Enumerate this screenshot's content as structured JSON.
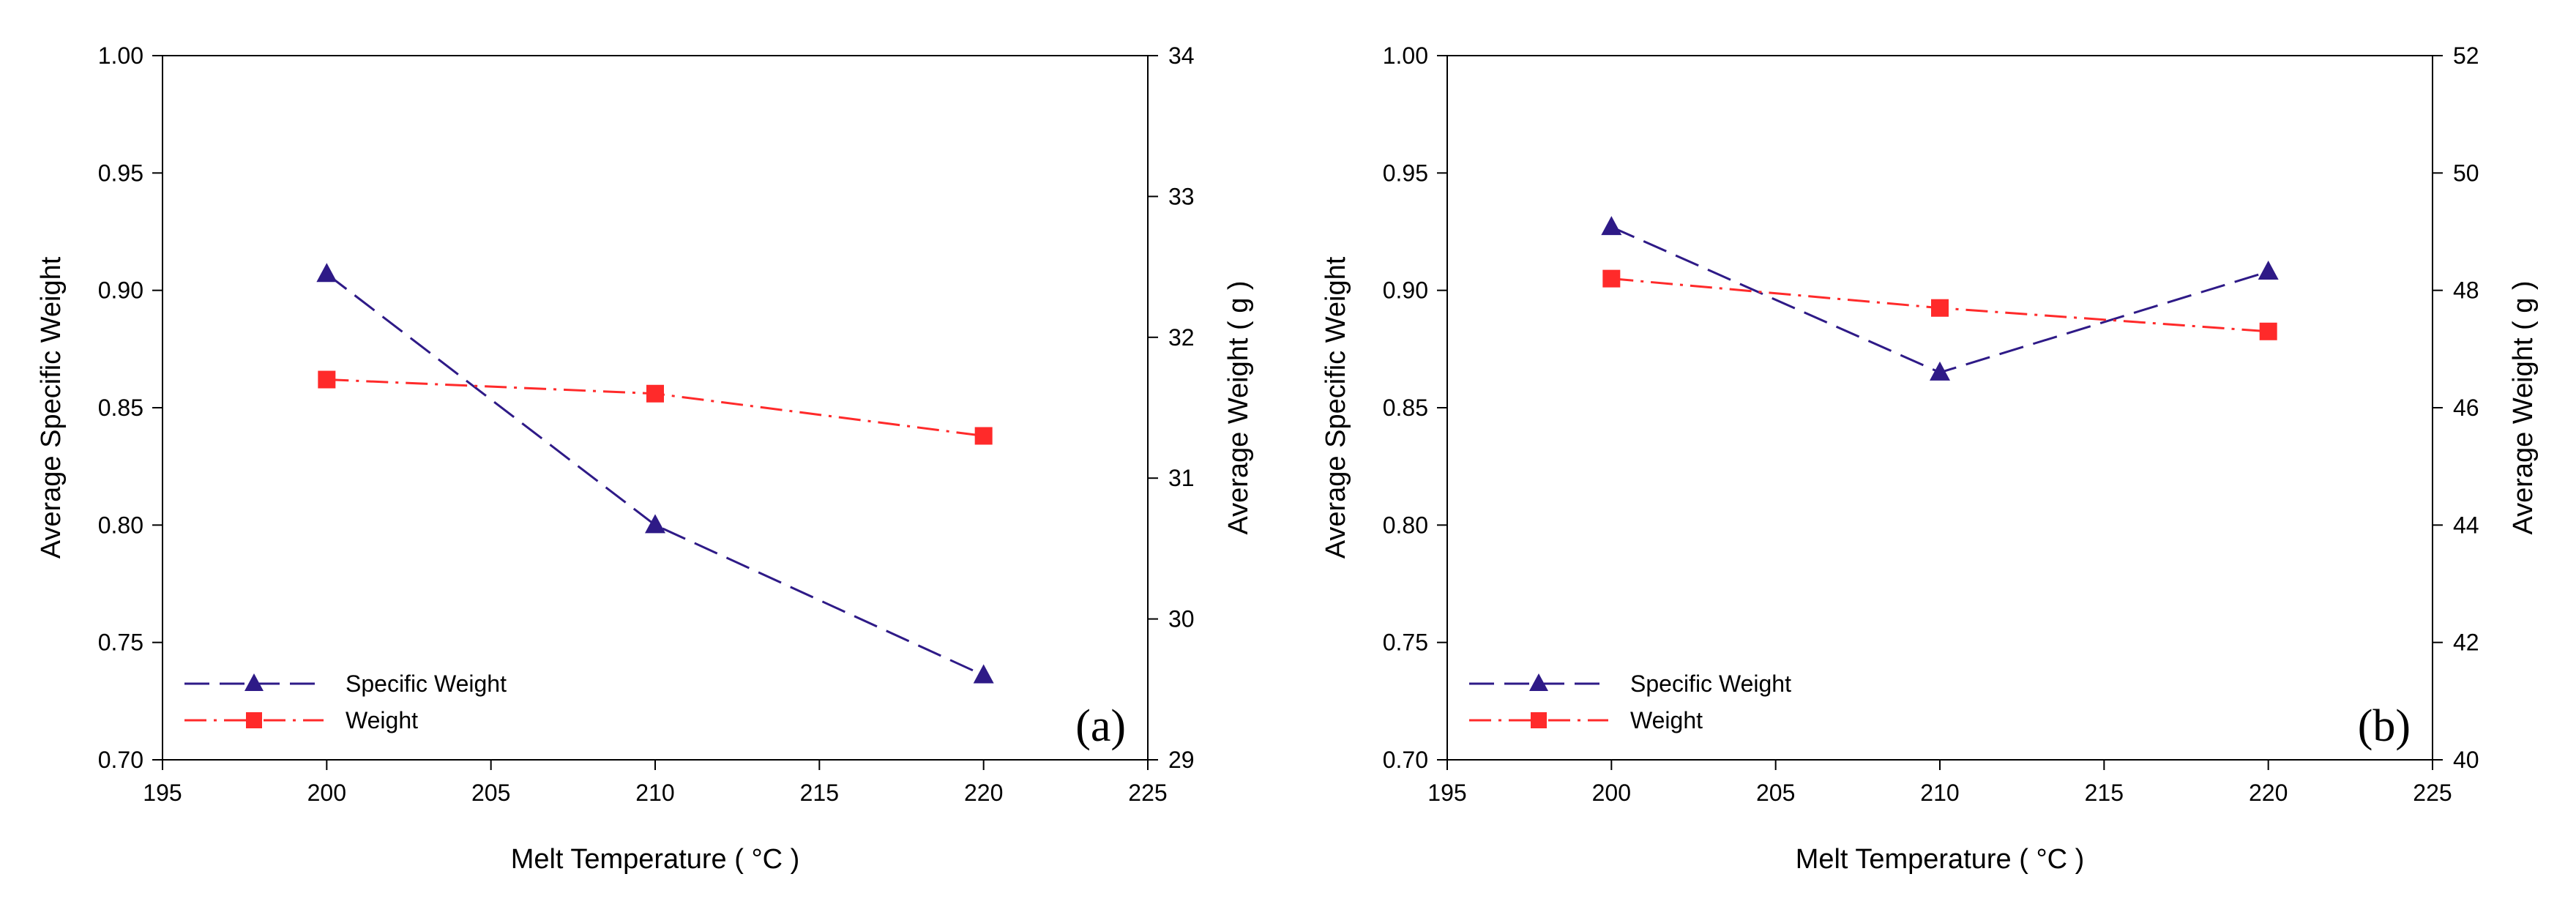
{
  "chart_data": [
    {
      "type": "line",
      "panel_label": "(a)",
      "xlabel": "Melt Temperature ( °C )",
      "ylabel": "Average Specific Weight",
      "y2label": "Average Weight ( g )",
      "xlim": [
        195,
        225
      ],
      "xticks": [
        195,
        200,
        205,
        210,
        215,
        220,
        225
      ],
      "ylim": [
        0.7,
        1.0
      ],
      "yticks": [
        0.7,
        0.75,
        0.8,
        0.85,
        0.9,
        0.95,
        1.0
      ],
      "y2lim": [
        29,
        34
      ],
      "y2ticks": [
        29,
        30,
        31,
        32,
        33,
        34
      ],
      "legend_position": "bottom-left",
      "series": [
        {
          "name": "Specific Weight",
          "axis": "left",
          "color": "#2e1a87",
          "marker": "triangle",
          "style": "dashed",
          "x": [
            200,
            210,
            220
          ],
          "values": [
            0.907,
            0.8,
            0.736
          ]
        },
        {
          "name": "Weight",
          "axis": "right",
          "color": "#ff2a2a",
          "marker": "square",
          "style": "dashdot",
          "x": [
            200,
            210,
            220
          ],
          "values": [
            31.7,
            31.6,
            31.3
          ]
        }
      ]
    },
    {
      "type": "line",
      "panel_label": "(b)",
      "xlabel": "Melt Temperature ( °C )",
      "ylabel": "Average Specific Weight",
      "y2label": "Average Weight ( g )",
      "xlim": [
        195,
        225
      ],
      "xticks": [
        195,
        200,
        205,
        210,
        215,
        220,
        225
      ],
      "ylim": [
        0.7,
        1.0
      ],
      "yticks": [
        0.7,
        0.75,
        0.8,
        0.85,
        0.9,
        0.95,
        1.0
      ],
      "y2lim": [
        40,
        52
      ],
      "y2ticks": [
        40,
        42,
        44,
        46,
        48,
        50,
        52
      ],
      "legend_position": "bottom-left",
      "series": [
        {
          "name": "Specific Weight",
          "axis": "left",
          "color": "#2e1a87",
          "marker": "triangle",
          "style": "dashed",
          "x": [
            200,
            210,
            220
          ],
          "values": [
            0.927,
            0.865,
            0.908
          ]
        },
        {
          "name": "Weight",
          "axis": "right",
          "color": "#ff2a2a",
          "marker": "square",
          "style": "dashdot",
          "x": [
            200,
            210,
            220
          ],
          "values": [
            48.2,
            47.7,
            47.3
          ]
        }
      ]
    }
  ]
}
